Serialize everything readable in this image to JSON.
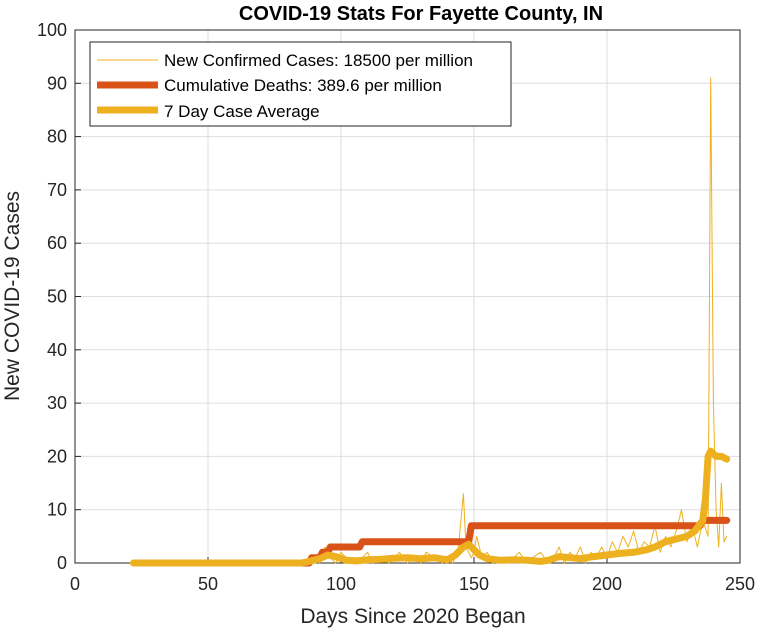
{
  "chart_data": {
    "type": "line",
    "title": "COVID-19 Stats For Fayette County, IN",
    "xlabel": "Days Since 2020 Began",
    "ylabel": "New COVID-19 Cases",
    "xlim": [
      0,
      250
    ],
    "ylim": [
      0,
      100
    ],
    "xticks": [
      0,
      50,
      100,
      150,
      200,
      250
    ],
    "yticks": [
      0,
      10,
      20,
      30,
      40,
      50,
      60,
      70,
      80,
      90,
      100
    ],
    "grid": true,
    "legend_position": "top-left",
    "series": [
      {
        "name": "New Confirmed Cases: 18500 per million",
        "color": "#EDB120",
        "style": "thin",
        "points": [
          [
            22,
            0
          ],
          [
            60,
            0
          ],
          [
            80,
            0
          ],
          [
            85,
            0.5
          ],
          [
            88,
            0
          ],
          [
            90,
            1
          ],
          [
            92,
            0
          ],
          [
            94,
            3
          ],
          [
            96,
            1
          ],
          [
            98,
            0
          ],
          [
            100,
            2
          ],
          [
            102,
            1
          ],
          [
            105,
            0
          ],
          [
            108,
            1
          ],
          [
            110,
            2
          ],
          [
            112,
            0
          ],
          [
            115,
            1
          ],
          [
            118,
            0
          ],
          [
            120,
            1
          ],
          [
            122,
            2
          ],
          [
            125,
            0
          ],
          [
            128,
            1
          ],
          [
            130,
            0
          ],
          [
            132,
            2
          ],
          [
            135,
            1
          ],
          [
            138,
            0
          ],
          [
            140,
            1
          ],
          [
            142,
            0
          ],
          [
            144,
            2
          ],
          [
            146,
            13
          ],
          [
            147,
            3
          ],
          [
            149,
            1
          ],
          [
            150,
            2
          ],
          [
            151,
            5
          ],
          [
            153,
            1
          ],
          [
            155,
            2
          ],
          [
            157,
            0
          ],
          [
            160,
            1
          ],
          [
            162,
            0
          ],
          [
            165,
            1
          ],
          [
            167,
            2
          ],
          [
            170,
            0
          ],
          [
            172,
            1
          ],
          [
            175,
            2
          ],
          [
            178,
            0
          ],
          [
            180,
            1
          ],
          [
            182,
            3
          ],
          [
            184,
            0
          ],
          [
            186,
            2
          ],
          [
            188,
            1
          ],
          [
            190,
            3
          ],
          [
            192,
            0
          ],
          [
            194,
            2
          ],
          [
            196,
            1
          ],
          [
            198,
            3
          ],
          [
            200,
            1
          ],
          [
            202,
            4
          ],
          [
            204,
            2
          ],
          [
            206,
            5
          ],
          [
            208,
            3
          ],
          [
            210,
            6
          ],
          [
            212,
            2
          ],
          [
            214,
            4
          ],
          [
            216,
            3
          ],
          [
            218,
            7
          ],
          [
            220,
            2
          ],
          [
            222,
            5
          ],
          [
            224,
            3
          ],
          [
            226,
            6
          ],
          [
            228,
            10
          ],
          [
            230,
            4
          ],
          [
            232,
            7
          ],
          [
            234,
            3
          ],
          [
            236,
            8
          ],
          [
            238,
            5
          ],
          [
            239,
            91
          ],
          [
            240,
            30
          ],
          [
            241,
            10
          ],
          [
            242,
            3
          ],
          [
            243,
            15
          ],
          [
            244,
            4
          ],
          [
            245,
            5
          ]
        ]
      },
      {
        "name": "Cumulative Deaths: 389.6 per million",
        "color": "#D95319",
        "style": "thick",
        "points": [
          [
            85,
            0
          ],
          [
            88,
            0
          ],
          [
            89,
            1
          ],
          [
            92,
            1
          ],
          [
            93,
            2
          ],
          [
            95,
            2
          ],
          [
            96,
            3
          ],
          [
            107,
            3
          ],
          [
            108,
            4
          ],
          [
            148,
            4
          ],
          [
            149,
            7
          ],
          [
            235,
            7
          ],
          [
            236,
            8
          ],
          [
            245,
            8
          ]
        ]
      },
      {
        "name": "7 Day Case Average",
        "color": "#EDB120",
        "style": "thick",
        "points": [
          [
            22,
            0
          ],
          [
            80,
            0
          ],
          [
            85,
            0
          ],
          [
            88,
            0.3
          ],
          [
            92,
            0.8
          ],
          [
            95,
            1.5
          ],
          [
            98,
            1.2
          ],
          [
            102,
            0.5
          ],
          [
            106,
            0.4
          ],
          [
            110,
            0.6
          ],
          [
            115,
            0.7
          ],
          [
            120,
            0.9
          ],
          [
            125,
            1
          ],
          [
            130,
            0.8
          ],
          [
            135,
            1
          ],
          [
            140,
            0.6
          ],
          [
            143,
            1.5
          ],
          [
            146,
            3
          ],
          [
            148,
            3.5
          ],
          [
            150,
            2.5
          ],
          [
            152,
            1.5
          ],
          [
            155,
            0.8
          ],
          [
            160,
            0.5
          ],
          [
            165,
            0.6
          ],
          [
            170,
            0.5
          ],
          [
            175,
            0.3
          ],
          [
            178,
            0.5
          ],
          [
            182,
            1.2
          ],
          [
            186,
            1
          ],
          [
            190,
            0.8
          ],
          [
            195,
            1.2
          ],
          [
            200,
            1.5
          ],
          [
            205,
            1.8
          ],
          [
            210,
            2
          ],
          [
            215,
            2.5
          ],
          [
            218,
            3
          ],
          [
            222,
            4
          ],
          [
            226,
            4.5
          ],
          [
            230,
            5
          ],
          [
            233,
            6
          ],
          [
            236,
            8
          ],
          [
            237,
            12
          ],
          [
            238,
            20
          ],
          [
            239,
            21
          ],
          [
            241,
            20
          ],
          [
            243,
            20
          ],
          [
            245,
            19.5
          ]
        ]
      }
    ]
  }
}
